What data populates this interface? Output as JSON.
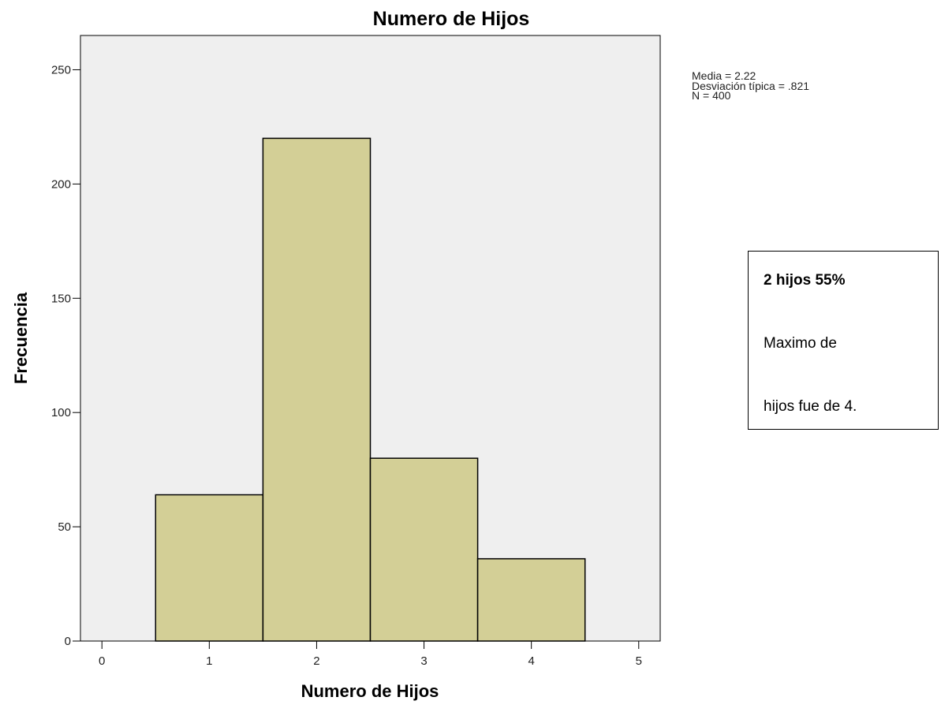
{
  "chart_data": {
    "type": "bar",
    "title": "Numero de Hijos",
    "xlabel": "Numero de Hijos",
    "ylabel": "Frecuencia",
    "categories": [
      "1",
      "2",
      "3",
      "4"
    ],
    "x": [
      1,
      2,
      3,
      4
    ],
    "values": [
      64,
      220,
      80,
      36
    ],
    "xlim": [
      -0.2,
      5.2
    ],
    "ylim": [
      0,
      265
    ],
    "x_ticks": [
      "0",
      "1",
      "2",
      "3",
      "4",
      "5"
    ],
    "y_ticks": [
      "0",
      "50",
      "100",
      "150",
      "200",
      "250"
    ],
    "grid": false,
    "bar_color": "#d3cf96",
    "plot_background": "#efefef",
    "stats": {
      "media": "Media = 2.22",
      "desviacion": "Desviación típica = .821",
      "n": "N = 400"
    }
  },
  "note": {
    "line1": "2 hijos  55%",
    "line2": "Maximo de",
    "line3": "hijos fue de 4."
  }
}
